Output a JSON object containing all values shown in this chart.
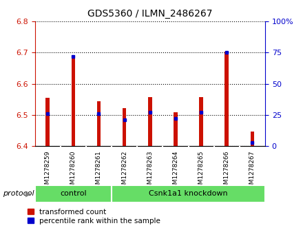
{
  "title": "GDS5360 / ILMN_2486267",
  "samples": [
    "GSM1278259",
    "GSM1278260",
    "GSM1278261",
    "GSM1278262",
    "GSM1278263",
    "GSM1278264",
    "GSM1278265",
    "GSM1278266",
    "GSM1278267"
  ],
  "transformed_count": [
    6.555,
    6.685,
    6.545,
    6.523,
    6.558,
    6.508,
    6.558,
    6.703,
    6.448
  ],
  "percentile_rank": [
    26,
    72,
    26,
    21,
    27,
    22,
    27,
    75,
    3
  ],
  "baseline": 6.4,
  "ylim_left": [
    6.4,
    6.8
  ],
  "ylim_right": [
    0,
    100
  ],
  "yticks_left": [
    6.4,
    6.5,
    6.6,
    6.7,
    6.8
  ],
  "yticks_right": [
    0,
    25,
    50,
    75,
    100
  ],
  "bar_color": "#cc1100",
  "blue_color": "#0000cc",
  "sample_bg_color": "#cccccc",
  "control_color": "#66dd66",
  "knockdown_color": "#66dd66",
  "control_label": "control",
  "knockdown_label": "Csnk1a1 knockdown",
  "protocol_label": "protocol",
  "legend_red": "transformed count",
  "legend_blue": "percentile rank within the sample",
  "n_control": 3,
  "bar_width": 0.15
}
